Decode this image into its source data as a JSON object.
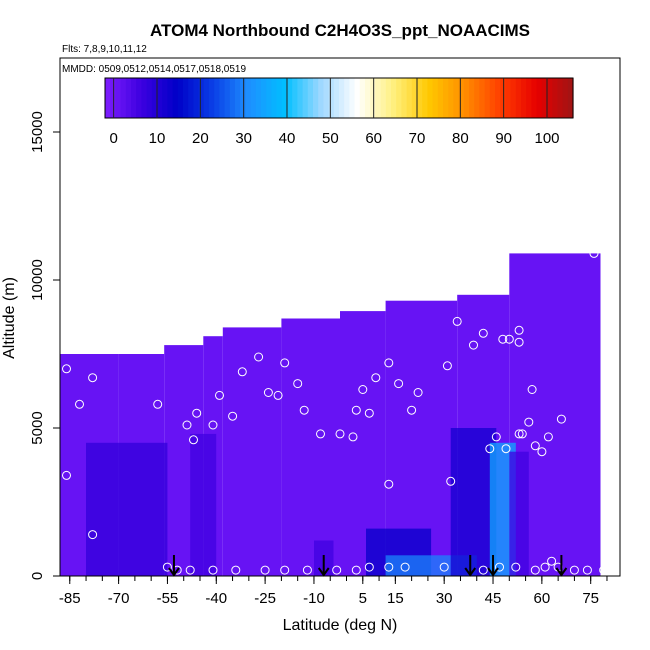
{
  "chart_data": {
    "type": "heatmap",
    "title": "ATOM4 Northbound C2H4O3S_ppt_NOAACIMS",
    "flights_note": "Flts: 7,8,9,10,11,12",
    "mmdd_note": "MMDD: 0509,0512,0514,0517,0518,0519",
    "xlabel": "Latitude (deg N)",
    "ylabel": "Altitude (m)",
    "x_ticks": [
      "-85",
      "-70",
      "-55",
      "-40",
      "-25",
      "-10",
      "5",
      "15",
      "30",
      "45",
      "60",
      "75"
    ],
    "y_ticks": [
      "0",
      "5000",
      "10000",
      "15000"
    ],
    "xlim": [
      -88,
      84
    ],
    "ylim": [
      0,
      17500
    ],
    "colorbar": {
      "ticks": [
        "0",
        "10",
        "20",
        "30",
        "40",
        "50",
        "60",
        "70",
        "80",
        "90",
        "100"
      ],
      "range": [
        -2,
        106
      ],
      "colors": [
        "#7f1eff",
        "#3d00e0",
        "#0000c8",
        "#0a3ee6",
        "#1e90ff",
        "#00bfff",
        "#9fd8ff",
        "#ffffff",
        "#fff080",
        "#ffc800",
        "#ff8c00",
        "#ff3c00",
        "#e60000",
        "#a01414"
      ]
    },
    "arrow_latitudes": [
      -53,
      -7,
      38,
      45,
      66
    ],
    "profile_columns": [
      {
        "x": [
          -88,
          -70
        ],
        "top": 7500
      },
      {
        "x": [
          -70,
          -56
        ],
        "top": 7500
      },
      {
        "x": [
          -56,
          -44
        ],
        "top": 7800
      },
      {
        "x": [
          -44,
          -38
        ],
        "top": 8100
      },
      {
        "x": [
          -38,
          -20
        ],
        "top": 8400
      },
      {
        "x": [
          -20,
          -2
        ],
        "top": 8700
      },
      {
        "x": [
          -2,
          12
        ],
        "top": 8950
      },
      {
        "x": [
          12,
          34
        ],
        "top": 9300
      },
      {
        "x": [
          34,
          50
        ],
        "top": 9500
      },
      {
        "x": [
          50,
          76
        ],
        "top": 10900
      },
      {
        "x": [
          76,
          78
        ],
        "top": 10900
      }
    ],
    "low_value_bands": [
      {
        "x": [
          -80,
          -55
        ],
        "top": 4500,
        "value": 8
      },
      {
        "x": [
          -48,
          -40
        ],
        "top": 4800,
        "value": 6
      },
      {
        "x": [
          -10,
          -4
        ],
        "top": 1200,
        "value": 6
      },
      {
        "x": [
          6,
          26
        ],
        "top": 1600,
        "value": 14
      },
      {
        "x": [
          12,
          40
        ],
        "top": 700,
        "value": 30
      },
      {
        "x": [
          32,
          46
        ],
        "top": 5000,
        "value": 12
      },
      {
        "x": [
          44,
          52
        ],
        "top": 4500,
        "value": 36
      },
      {
        "x": [
          50,
          56
        ],
        "top": 4200,
        "value": 6
      }
    ],
    "observations": [
      {
        "lat": -86,
        "alt": 7000
      },
      {
        "lat": -82,
        "alt": 5800
      },
      {
        "lat": -78,
        "alt": 6700
      },
      {
        "lat": -86,
        "alt": 3400
      },
      {
        "lat": -78,
        "alt": 1400
      },
      {
        "lat": -58,
        "alt": 5800
      },
      {
        "lat": -49,
        "alt": 5100
      },
      {
        "lat": -46,
        "alt": 5500
      },
      {
        "lat": -47,
        "alt": 4600
      },
      {
        "lat": -41,
        "alt": 5100
      },
      {
        "lat": -39,
        "alt": 6100
      },
      {
        "lat": -35,
        "alt": 5400
      },
      {
        "lat": -32,
        "alt": 6900
      },
      {
        "lat": -27,
        "alt": 7400
      },
      {
        "lat": -24,
        "alt": 6200
      },
      {
        "lat": -19,
        "alt": 7200
      },
      {
        "lat": -15,
        "alt": 6500
      },
      {
        "lat": -13,
        "alt": 5600
      },
      {
        "lat": -21,
        "alt": 6100
      },
      {
        "lat": -2,
        "alt": 4800
      },
      {
        "lat": 2,
        "alt": 4700
      },
      {
        "lat": 3,
        "alt": 5600
      },
      {
        "lat": 5,
        "alt": 6300
      },
      {
        "lat": 7,
        "alt": 5500
      },
      {
        "lat": 9,
        "alt": 6700
      },
      {
        "lat": 13,
        "alt": 7200
      },
      {
        "lat": 16,
        "alt": 6500
      },
      {
        "lat": 20,
        "alt": 5600
      },
      {
        "lat": 22,
        "alt": 6200
      },
      {
        "lat": 13,
        "alt": 3100
      },
      {
        "lat": 31,
        "alt": 7100
      },
      {
        "lat": 34,
        "alt": 8600
      },
      {
        "lat": 32,
        "alt": 3200
      },
      {
        "lat": 39,
        "alt": 7800
      },
      {
        "lat": 42,
        "alt": 8200
      },
      {
        "lat": 48,
        "alt": 8000
      },
      {
        "lat": 50,
        "alt": 8000
      },
      {
        "lat": 53,
        "alt": 8300
      },
      {
        "lat": 53,
        "alt": 7900
      },
      {
        "lat": 57,
        "alt": 6300
      },
      {
        "lat": 53,
        "alt": 4800
      },
      {
        "lat": 54,
        "alt": 4800
      },
      {
        "lat": 56,
        "alt": 5200
      },
      {
        "lat": 58,
        "alt": 4400
      },
      {
        "lat": 60,
        "alt": 4200
      },
      {
        "lat": 62,
        "alt": 4700
      },
      {
        "lat": 66,
        "alt": 5300
      },
      {
        "lat": 76,
        "alt": 10900
      },
      {
        "lat": 46,
        "alt": 4700
      },
      {
        "lat": 49,
        "alt": 4300
      },
      {
        "lat": 44,
        "alt": 4300
      },
      {
        "lat": -8,
        "alt": 4800
      },
      {
        "lat": -55,
        "alt": 300
      },
      {
        "lat": -52,
        "alt": 200
      },
      {
        "lat": -48,
        "alt": 200
      },
      {
        "lat": -41,
        "alt": 200
      },
      {
        "lat": -34,
        "alt": 200
      },
      {
        "lat": -25,
        "alt": 200
      },
      {
        "lat": -19,
        "alt": 200
      },
      {
        "lat": -12,
        "alt": 200
      },
      {
        "lat": -3,
        "alt": 200
      },
      {
        "lat": 3,
        "alt": 200
      },
      {
        "lat": 7,
        "alt": 300
      },
      {
        "lat": 13,
        "alt": 300
      },
      {
        "lat": 18,
        "alt": 300
      },
      {
        "lat": 30,
        "alt": 300
      },
      {
        "lat": 42,
        "alt": 200
      },
      {
        "lat": 47,
        "alt": 300
      },
      {
        "lat": 52,
        "alt": 300
      },
      {
        "lat": 58,
        "alt": 200
      },
      {
        "lat": 61,
        "alt": 300
      },
      {
        "lat": 63,
        "alt": 500
      },
      {
        "lat": 65,
        "alt": 300
      },
      {
        "lat": 70,
        "alt": 200
      },
      {
        "lat": 74,
        "alt": 200
      },
      {
        "lat": 79,
        "alt": 200
      },
      {
        "lat": 83,
        "alt": 200
      }
    ]
  }
}
